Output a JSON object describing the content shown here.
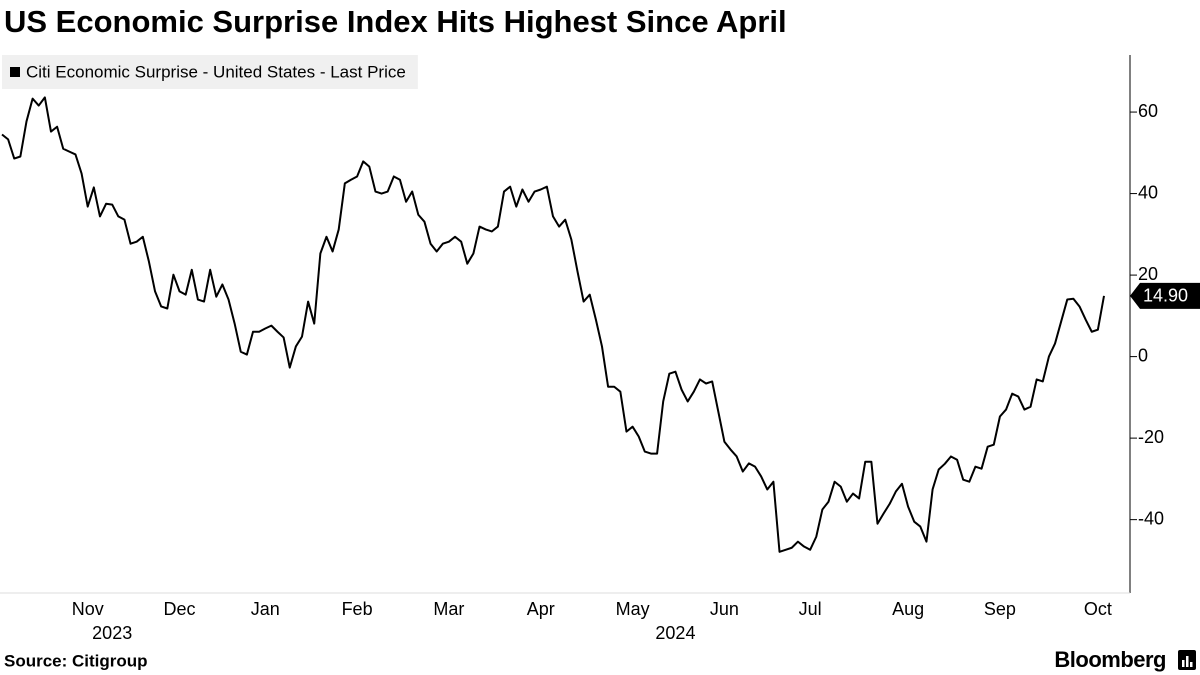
{
  "chart_data": {
    "type": "line",
    "title": "US Economic Surprise Index Hits Highest Since April",
    "source": "Source: Citigroup",
    "brand": "Bloomberg",
    "categories": [
      null,
      null,
      null,
      null,
      null,
      null,
      null,
      null,
      null,
      null,
      null,
      null,
      null,
      null,
      "Nov",
      null,
      null,
      null,
      null,
      null,
      null,
      null,
      null,
      null,
      null,
      null,
      null,
      null,
      null,
      "Dec",
      null,
      null,
      null,
      null,
      null,
      null,
      null,
      null,
      null,
      null,
      null,
      null,
      null,
      "Jan",
      null,
      null,
      null,
      null,
      null,
      null,
      null,
      null,
      null,
      null,
      null,
      null,
      null,
      null,
      "Feb",
      null,
      null,
      null,
      null,
      null,
      null,
      null,
      null,
      null,
      null,
      null,
      null,
      null,
      null,
      "Mar",
      null,
      null,
      null,
      null,
      null,
      null,
      null,
      null,
      null,
      null,
      null,
      null,
      null,
      null,
      "Apr",
      null,
      null,
      null,
      null,
      null,
      null,
      null,
      null,
      null,
      null,
      null,
      null,
      null,
      null,
      "May",
      null,
      null,
      null,
      null,
      null,
      null,
      null,
      null,
      null,
      null,
      null,
      null,
      null,
      null,
      "Jun",
      null,
      null,
      null,
      null,
      null,
      null,
      null,
      null,
      null,
      null,
      null,
      null,
      null,
      "Jul",
      null,
      null,
      null,
      null,
      null,
      null,
      null,
      null,
      null,
      null,
      null,
      null,
      null,
      null,
      null,
      "Aug",
      null,
      null,
      null,
      null,
      null,
      null,
      null,
      null,
      null,
      null,
      null,
      null,
      null,
      null,
      "Sep",
      null,
      null,
      null,
      null,
      null,
      null,
      null,
      null,
      null,
      null,
      null,
      null,
      null,
      null,
      null,
      "Oct",
      null
    ],
    "categories2": [
      null,
      null,
      null,
      null,
      null,
      null,
      null,
      null,
      null,
      null,
      null,
      null,
      null,
      null,
      null,
      null,
      null,
      null,
      "2023",
      null,
      null,
      null,
      null,
      null,
      null,
      null,
      null,
      null,
      null,
      null,
      null,
      null,
      null,
      null,
      null,
      null,
      null,
      null,
      null,
      null,
      null,
      null,
      null,
      null,
      null,
      null,
      null,
      null,
      null,
      null,
      null,
      null,
      null,
      null,
      null,
      null,
      null,
      null,
      null,
      null,
      null,
      null,
      null,
      null,
      null,
      null,
      null,
      null,
      null,
      null,
      null,
      null,
      null,
      null,
      null,
      null,
      null,
      null,
      null,
      null,
      null,
      null,
      null,
      null,
      null,
      null,
      null,
      null,
      null,
      null,
      null,
      null,
      null,
      null,
      null,
      null,
      null,
      null,
      null,
      null,
      null,
      null,
      null,
      null,
      null,
      null,
      null,
      null,
      null,
      null,
      "2024",
      null,
      null,
      null,
      null,
      null,
      null,
      null,
      null,
      null,
      null,
      null,
      null,
      null,
      null,
      null,
      null,
      null,
      null,
      null,
      null,
      null,
      null,
      null,
      null,
      null,
      null,
      null,
      null,
      null,
      null,
      null,
      null,
      null,
      null,
      null,
      null,
      null,
      null,
      null,
      null,
      null,
      null,
      null,
      null,
      null,
      null,
      null,
      null,
      null,
      null,
      null,
      null,
      null,
      null,
      null,
      null,
      null,
      null,
      null,
      null,
      null,
      null,
      null,
      null,
      null,
      null,
      null,
      null,
      null,
      null
    ],
    "series": [
      {
        "name": "Citi Economic Surprise - United States - Last Price",
        "color": "#000000",
        "values": [
          54.5,
          53.3,
          48.6,
          49.1,
          57.7,
          63.3,
          61.6,
          63.6,
          55.2,
          56.4,
          51.0,
          50.3,
          49.6,
          44.9,
          36.8,
          41.5,
          34.4,
          37.5,
          37.3,
          34.4,
          33.6,
          27.7,
          28.2,
          29.4,
          23.3,
          16.0,
          12.3,
          11.8,
          20.1,
          16.0,
          15.2,
          21.3,
          14.0,
          13.5,
          21.3,
          14.7,
          17.7,
          14.0,
          8.1,
          1.2,
          0.5,
          6.1,
          6.1,
          6.9,
          7.6,
          6.1,
          4.7,
          -2.7,
          2.5,
          4.9,
          13.5,
          8.1,
          25.3,
          29.4,
          25.8,
          31.2,
          42.5,
          43.4,
          44.2,
          47.9,
          46.6,
          40.5,
          40.0,
          40.5,
          44.2,
          43.4,
          38.0,
          40.5,
          34.8,
          33.1,
          27.7,
          25.8,
          27.7,
          28.2,
          29.4,
          28.2,
          22.8,
          25.3,
          31.9,
          31.2,
          30.7,
          31.9,
          40.5,
          41.7,
          36.8,
          41.0,
          38.0,
          40.5,
          41.0,
          41.7,
          34.4,
          31.9,
          33.6,
          28.7,
          20.9,
          13.5,
          15.2,
          9.1,
          2.5,
          -7.4,
          -7.4,
          -8.6,
          -18.4,
          -17.2,
          -19.6,
          -23.3,
          -23.8,
          -23.8,
          -11.0,
          -4.2,
          -3.7,
          -8.1,
          -11.0,
          -8.6,
          -5.6,
          -6.6,
          -6.1,
          -13.5,
          -20.9,
          -22.8,
          -24.5,
          -28.2,
          -26.2,
          -27.0,
          -29.4,
          -32.6,
          -30.7,
          -47.9,
          -47.4,
          -46.9,
          -45.4,
          -46.6,
          -47.4,
          -44.2,
          -37.5,
          -35.6,
          -30.7,
          -31.9,
          -35.6,
          -33.6,
          -34.8,
          -25.8,
          -25.8,
          -41.0,
          -38.5,
          -36.1,
          -33.1,
          -31.2,
          -36.8,
          -40.5,
          -41.7,
          -45.4,
          -32.6,
          -27.7,
          -26.3,
          -24.5,
          -25.3,
          -30.2,
          -30.7,
          -27.0,
          -27.5,
          -22.1,
          -21.6,
          -14.7,
          -13.0,
          -9.1,
          -9.8,
          -13.0,
          -12.3,
          -5.6,
          -6.1,
          0.0,
          3.2,
          8.6,
          14.0,
          14.2,
          12.3,
          9.1,
          6.1,
          6.6,
          14.9
        ],
        "value_labels": [
          null,
          null,
          null,
          null,
          null,
          null,
          null,
          null,
          null,
          null,
          null,
          null,
          null,
          null,
          null,
          null,
          null,
          null,
          null,
          null,
          null,
          null,
          null,
          null,
          null,
          null,
          null,
          null,
          null,
          null,
          null,
          null,
          null,
          null,
          null,
          null,
          null,
          null,
          null,
          null,
          null,
          null,
          null,
          null,
          null,
          null,
          null,
          null,
          null,
          null,
          null,
          null,
          null,
          null,
          null,
          null,
          null,
          null,
          null,
          null,
          null,
          null,
          null,
          null,
          null,
          null,
          null,
          null,
          null,
          null,
          null,
          null,
          null,
          null,
          null,
          null,
          null,
          null,
          null,
          null,
          null,
          null,
          null,
          null,
          null,
          null,
          null,
          null,
          null,
          null,
          null,
          null,
          null,
          null,
          null,
          null,
          null,
          null,
          null,
          null,
          null,
          null,
          null,
          null,
          null,
          null,
          null,
          null,
          null,
          null,
          null,
          null,
          null,
          null,
          null,
          null,
          null,
          null,
          null,
          null,
          null,
          null,
          null,
          null,
          null,
          null,
          null,
          null,
          null,
          null,
          null,
          null,
          null,
          null,
          null,
          null,
          null,
          null,
          null,
          null,
          null,
          null,
          null,
          null,
          null,
          null,
          null,
          null,
          null,
          null,
          null,
          null,
          null,
          null,
          null,
          null,
          null,
          null,
          null,
          null,
          null,
          null,
          null,
          null,
          null,
          null,
          null,
          null,
          null,
          null,
          null,
          null,
          null,
          null,
          null,
          null,
          null,
          null,
          null,
          null,
          "14.90"
        ]
      }
    ],
    "ylim": [
      -58,
      74
    ],
    "yticks": [
      -40,
      -20,
      0,
      20,
      40,
      60
    ],
    "grid": false,
    "legend": "top-left"
  }
}
